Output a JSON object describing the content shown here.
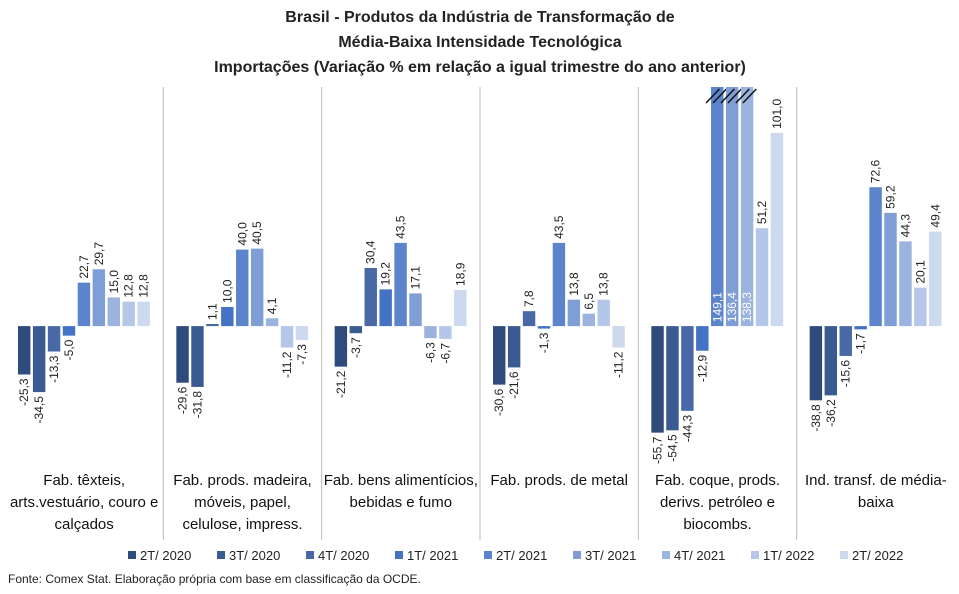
{
  "chart_data": {
    "type": "bar",
    "title": [
      "Brasil - Produtos da Indústria de Transformação de",
      "Média-Baixa Intensidade Tecnológica",
      "Importações (Variação % em relação a igual trimestre do ano anterior)"
    ],
    "categories": [
      "Fab. têxteis, arts.vestuário, couro e calçados",
      "Fab. prods. madeira, móveis, papel, celulose, impress.",
      "Fab. bens alimentícios, bebidas e fumo",
      "Fab. prods. de metal",
      "Fab. coque, prods. derivs. petróleo e biocombs.",
      "Ind. transf. de média-baixa"
    ],
    "ylim": [
      -70,
      125
    ],
    "series": [
      {
        "name": "2T/ 2020",
        "color": "#2f4b7c",
        "values": [
          -25.3,
          -29.6,
          -21.2,
          -30.6,
          -55.7,
          -38.8
        ],
        "value_labels": [
          "-25,3",
          "-29,6",
          "-21,2",
          "-30,6",
          "-55,7",
          "-38,8"
        ]
      },
      {
        "name": "3T/ 2020",
        "color": "#3a5b92",
        "values": [
          -34.5,
          -31.8,
          -3.7,
          -21.6,
          -54.5,
          -36.2
        ],
        "value_labels": [
          "-34,5",
          "-31,8",
          "-3,7",
          "-21,6",
          "-54,5",
          "-36,2"
        ]
      },
      {
        "name": "4T/ 2020",
        "color": "#4868a6",
        "values": [
          -13.3,
          1.1,
          30.4,
          7.8,
          -44.3,
          -15.6
        ],
        "value_labels": [
          "-13,3",
          "1,1",
          "30,4",
          "7,8",
          "-44,3",
          "-15,6"
        ]
      },
      {
        "name": "1T/ 2021",
        "color": "#4472c4",
        "values": [
          -5.0,
          10.0,
          19.2,
          -1.3,
          -12.9,
          -1.7
        ],
        "value_labels": [
          "-5,0",
          "10,0",
          "19,2",
          "-1,3",
          "-12,9",
          "-1,7"
        ]
      },
      {
        "name": "2T/ 2021",
        "color": "#5b84cc",
        "values": [
          22.7,
          40.0,
          43.5,
          43.5,
          149.1,
          72.6
        ],
        "value_labels": [
          "22,7",
          "40,0",
          "43,5",
          "43,5",
          "149,1",
          "72,6"
        ]
      },
      {
        "name": "3T/ 2021",
        "color": "#7f9ed6",
        "values": [
          29.7,
          40.5,
          17.1,
          13.8,
          136.4,
          59.2
        ],
        "value_labels": [
          "29,7",
          "40,5",
          "17,1",
          "13,8",
          "136,4",
          "59,2"
        ]
      },
      {
        "name": "4T/ 2021",
        "color": "#9bb3df",
        "values": [
          15.0,
          4.1,
          -6.3,
          6.5,
          138.3,
          44.3
        ],
        "value_labels": [
          "15,0",
          "4,1",
          "-6,3",
          "6,5",
          "138,3",
          "44,3"
        ]
      },
      {
        "name": "1T/ 2022",
        "color": "#b5c7e8",
        "values": [
          12.8,
          -11.2,
          -6.7,
          13.8,
          51.2,
          20.1
        ],
        "value_labels": [
          "12,8",
          "-11,2",
          "-6,7",
          "13,8",
          "51,2",
          "20,1"
        ]
      },
      {
        "name": "2T/ 2022",
        "color": "#cdd9ef",
        "values": [
          12.8,
          -7.3,
          18.9,
          -11.2,
          101.0,
          49.4
        ],
        "value_labels": [
          "12,8",
          "-7,3",
          "18,9",
          "-11,2",
          "101,0",
          "49,4"
        ]
      }
    ],
    "source": "Fonte: Comex Stat. Elaboração própria com base em classificação da OCDE."
  }
}
